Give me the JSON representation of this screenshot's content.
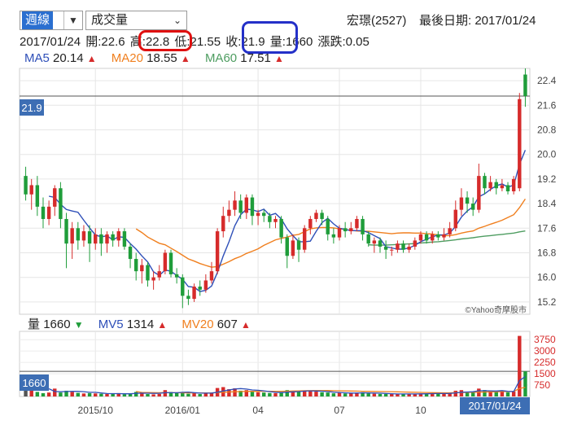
{
  "toolbar": {
    "period": "週線",
    "indicator": "成交量",
    "stock": "宏璟(2527)",
    "last_date_label": "最後日期: 2017/01/24"
  },
  "quote": {
    "date": "2017/01/24",
    "open": "開:22.6",
    "high": "高:22.8",
    "low": "低:21.55",
    "close": "收:21.9",
    "volume": "量:1660",
    "change": "漲跌:0.05"
  },
  "ma_legend": [
    {
      "name": "MA5",
      "value": "20.14",
      "color": "#2e4fb8"
    },
    {
      "name": "MA20",
      "value": "18.55",
      "color": "#f07f1e"
    },
    {
      "name": "MA60",
      "value": "17.51",
      "color": "#4e9d61"
    }
  ],
  "vol_legend": {
    "label": "量",
    "value": "1660",
    "mv": [
      {
        "name": "MV5",
        "value": "1314",
        "color": "#2e4fb8"
      },
      {
        "name": "MV20",
        "value": "607",
        "color": "#f07f1e"
      }
    ]
  },
  "price_badge": "21.9",
  "vol_badge": "1660",
  "date_badge": "2017/01/24",
  "watermark": "©Yahoo奇摩股市",
  "colors": {
    "up": "#d62b2b",
    "down": "#1f9d3a",
    "ma5": "#2e4fb8",
    "ma20": "#f07f1e",
    "ma60": "#4e9d61",
    "badge": "#3d6eb4"
  },
  "chart_data": {
    "type": "candlestick",
    "y_ticks": [
      15.2,
      16.0,
      16.8,
      17.6,
      18.4,
      19.2,
      20.0,
      20.8,
      21.6,
      22.4
    ],
    "ylim": [
      14.8,
      22.8
    ],
    "x_ticks": [
      {
        "label": "2015/10",
        "index": 12
      },
      {
        "label": "2016/01",
        "index": 27
      },
      {
        "label": "04",
        "index": 40
      },
      {
        "label": "07",
        "index": 54
      },
      {
        "label": "10",
        "index": 68
      }
    ],
    "candles": [
      [
        19.3,
        18.7,
        19.6,
        18.5
      ],
      [
        18.7,
        19.0,
        19.2,
        18.2
      ],
      [
        19.0,
        18.3,
        19.3,
        18.0
      ],
      [
        18.3,
        17.9,
        18.6,
        17.6
      ],
      [
        17.9,
        18.3,
        18.5,
        17.7
      ],
      [
        18.3,
        18.9,
        19.0,
        18.0
      ],
      [
        18.9,
        17.9,
        19.1,
        17.6
      ],
      [
        17.9,
        17.1,
        18.1,
        16.3
      ],
      [
        17.1,
        17.6,
        17.8,
        16.6
      ],
      [
        17.6,
        17.2,
        17.8,
        16.9
      ],
      [
        17.2,
        17.5,
        17.7,
        17.0
      ],
      [
        17.5,
        17.1,
        17.7,
        16.5
      ],
      [
        17.1,
        17.4,
        17.6,
        16.9
      ],
      [
        17.4,
        17.1,
        17.6,
        16.7
      ],
      [
        17.1,
        17.4,
        17.5,
        16.8
      ],
      [
        17.4,
        17.2,
        17.5,
        17.0
      ],
      [
        17.2,
        17.5,
        17.6,
        17.0
      ],
      [
        17.5,
        17.0,
        17.6,
        16.9
      ],
      [
        17.0,
        16.6,
        17.1,
        16.3
      ],
      [
        16.6,
        16.2,
        16.8,
        15.9
      ],
      [
        16.2,
        16.4,
        16.6,
        15.8
      ],
      [
        16.4,
        15.9,
        16.5,
        15.7
      ],
      [
        15.9,
        16.0,
        16.2,
        15.6
      ],
      [
        16.0,
        16.2,
        16.4,
        15.9
      ],
      [
        16.2,
        16.8,
        16.9,
        16.1
      ],
      [
        16.8,
        16.1,
        16.9,
        16.0
      ],
      [
        16.1,
        16.0,
        16.3,
        15.8
      ],
      [
        16.0,
        15.4,
        16.1,
        15.0
      ],
      [
        15.4,
        15.3,
        15.6,
        15.1
      ],
      [
        15.3,
        15.7,
        15.8,
        15.2
      ],
      [
        15.7,
        15.6,
        15.9,
        15.4
      ],
      [
        15.6,
        15.9,
        16.1,
        15.5
      ],
      [
        15.9,
        16.2,
        16.5,
        15.8
      ],
      [
        16.2,
        17.5,
        17.6,
        16.1
      ],
      [
        17.5,
        18.0,
        18.3,
        17.3
      ],
      [
        18.0,
        18.2,
        18.5,
        17.8
      ],
      [
        18.2,
        18.5,
        18.8,
        18.0
      ],
      [
        18.5,
        18.1,
        18.7,
        17.9
      ],
      [
        18.1,
        18.6,
        18.7,
        17.9
      ],
      [
        18.6,
        18.0,
        18.7,
        17.7
      ],
      [
        18.0,
        18.1,
        18.2,
        17.7
      ],
      [
        18.1,
        18.0,
        18.2,
        17.8
      ],
      [
        18.0,
        17.8,
        18.1,
        17.6
      ],
      [
        17.8,
        17.9,
        18.0,
        17.6
      ],
      [
        17.9,
        17.3,
        18.0,
        17.1
      ],
      [
        17.3,
        16.7,
        17.4,
        16.3
      ],
      [
        16.7,
        17.2,
        17.4,
        16.6
      ],
      [
        17.2,
        16.9,
        17.3,
        16.5
      ],
      [
        16.9,
        17.6,
        17.7,
        16.8
      ],
      [
        17.6,
        17.9,
        18.0,
        17.4
      ],
      [
        17.9,
        18.1,
        18.2,
        17.8
      ],
      [
        18.1,
        17.9,
        18.2,
        17.7
      ],
      [
        17.9,
        17.4,
        18.0,
        17.2
      ],
      [
        17.4,
        17.3,
        17.6,
        17.1
      ],
      [
        17.3,
        17.6,
        17.7,
        17.2
      ],
      [
        17.6,
        17.5,
        17.8,
        17.3
      ],
      [
        17.5,
        17.6,
        17.8,
        17.4
      ],
      [
        17.6,
        17.9,
        18.0,
        17.5
      ],
      [
        17.9,
        17.4,
        18.0,
        17.2
      ],
      [
        17.4,
        17.1,
        17.5,
        17.0
      ],
      [
        17.1,
        17.2,
        17.3,
        16.8
      ],
      [
        17.2,
        17.0,
        17.3,
        16.8
      ],
      [
        17.0,
        16.9,
        17.2,
        16.6
      ],
      [
        16.9,
        16.9,
        17.0,
        16.7
      ],
      [
        16.9,
        17.1,
        17.2,
        16.8
      ],
      [
        17.1,
        16.9,
        17.2,
        16.8
      ],
      [
        16.9,
        17.0,
        17.1,
        16.8
      ],
      [
        17.0,
        17.2,
        17.3,
        16.9
      ],
      [
        17.2,
        17.4,
        17.5,
        17.1
      ],
      [
        17.4,
        17.2,
        17.5,
        17.1
      ],
      [
        17.2,
        17.4,
        17.5,
        17.1
      ],
      [
        17.4,
        17.3,
        17.5,
        17.2
      ],
      [
        17.3,
        17.4,
        17.6,
        17.2
      ],
      [
        17.4,
        17.6,
        17.8,
        17.3
      ],
      [
        17.6,
        18.2,
        18.5,
        17.5
      ],
      [
        18.2,
        18.6,
        18.9,
        18.0
      ],
      [
        18.6,
        18.4,
        18.8,
        18.1
      ],
      [
        18.4,
        18.2,
        18.6,
        18.0
      ],
      [
        18.2,
        19.3,
        19.7,
        18.1
      ],
      [
        19.3,
        18.9,
        19.4,
        18.7
      ],
      [
        18.9,
        19.1,
        19.3,
        18.8
      ],
      [
        19.1,
        18.9,
        19.2,
        18.7
      ],
      [
        18.9,
        19.0,
        19.2,
        18.8
      ],
      [
        19.0,
        18.8,
        19.1,
        18.7
      ],
      [
        18.8,
        19.2,
        19.3,
        18.7
      ],
      [
        18.9,
        21.8,
        22.0,
        18.8
      ],
      [
        22.6,
        21.9,
        22.8,
        21.55
      ]
    ],
    "ma5": [
      null,
      null,
      null,
      null,
      18.64,
      18.6,
      18.38,
      18.21,
      18.16,
      18.12,
      17.86,
      17.61,
      17.38,
      17.32,
      17.35,
      17.22,
      17.32,
      17.3,
      17.1,
      16.92,
      16.7,
      16.5,
      16.18,
      16.06,
      16.24,
      16.2,
      16.06,
      15.94,
      15.7,
      15.68,
      15.54,
      15.58,
      15.72,
      16.16,
      16.7,
      17.16,
      17.68,
      18.04,
      18.22,
      18.2,
      18.14,
      18.22,
      18.02,
      18.08,
      17.9,
      17.58,
      17.36,
      17.16,
      17.16,
      17.18,
      17.5,
      17.78,
      17.92,
      17.74,
      17.6,
      17.56,
      17.52,
      17.52,
      17.52,
      17.46,
      17.36,
      17.26,
      17.0,
      16.96,
      16.92,
      16.92,
      16.96,
      17.04,
      17.16,
      17.24,
      17.32,
      17.38,
      17.38,
      17.44,
      17.66,
      17.96,
      18.16,
      18.3,
      18.62,
      18.72,
      18.86,
      18.98,
      19.04,
      18.94,
      19.0,
      19.68,
      20.14
    ],
    "ma20": [
      null,
      null,
      null,
      null,
      null,
      null,
      null,
      null,
      null,
      null,
      null,
      null,
      null,
      null,
      null,
      null,
      null,
      null,
      null,
      17.58,
      17.46,
      17.31,
      17.21,
      17.11,
      17.06,
      16.95,
      16.84,
      16.72,
      16.6,
      16.53,
      16.45,
      16.39,
      16.33,
      16.35,
      16.43,
      16.51,
      16.61,
      16.68,
      16.78,
      16.85,
      16.93,
      17.04,
      17.13,
      17.22,
      17.27,
      17.31,
      17.37,
      17.4,
      17.49,
      17.58,
      17.61,
      17.62,
      17.62,
      17.61,
      17.58,
      17.56,
      17.53,
      17.51,
      17.5,
      17.5,
      17.48,
      17.46,
      17.44,
      17.42,
      17.44,
      17.45,
      17.45,
      17.44,
      17.44,
      17.42,
      17.41,
      17.38,
      17.36,
      17.36,
      17.39,
      17.44,
      17.48,
      17.51,
      17.6,
      17.66,
      17.73,
      17.79,
      17.86,
      17.95,
      18.04,
      18.27,
      18.55
    ],
    "ma60": [
      null,
      null,
      null,
      null,
      null,
      null,
      null,
      null,
      null,
      null,
      null,
      null,
      null,
      null,
      null,
      null,
      null,
      null,
      null,
      null,
      null,
      null,
      null,
      null,
      null,
      null,
      null,
      null,
      null,
      null,
      null,
      null,
      null,
      null,
      null,
      null,
      null,
      null,
      null,
      null,
      null,
      null,
      null,
      null,
      null,
      null,
      null,
      null,
      null,
      null,
      null,
      null,
      null,
      null,
      null,
      null,
      null,
      null,
      null,
      17.06,
      17.05,
      17.05,
      17.05,
      17.06,
      17.07,
      17.08,
      17.09,
      17.1,
      17.12,
      17.13,
      17.15,
      17.16,
      17.18,
      17.2,
      17.22,
      17.25,
      17.27,
      17.29,
      17.32,
      17.34,
      17.36,
      17.38,
      17.4,
      17.42,
      17.44,
      17.48,
      17.51
    ],
    "vol_ticks": [
      750,
      1500,
      2250,
      3000,
      3750
    ],
    "vol_ylim": [
      0,
      4300
    ],
    "volume": [
      1400,
      380,
      300,
      220,
      260,
      520,
      260,
      380,
      300,
      240,
      200,
      220,
      200,
      180,
      160,
      170,
      220,
      150,
      180,
      300,
      260,
      160,
      140,
      170,
      420,
      300,
      250,
      300,
      180,
      230,
      160,
      200,
      260,
      560,
      620,
      480,
      540,
      380,
      420,
      310,
      280,
      260,
      230,
      220,
      300,
      420,
      360,
      300,
      400,
      380,
      320,
      280,
      260,
      210,
      250,
      200,
      220,
      260,
      280,
      200,
      180,
      170,
      160,
      160,
      170,
      150,
      160,
      180,
      200,
      190,
      210,
      190,
      180,
      210,
      380,
      420,
      300,
      260,
      520,
      420,
      360,
      300,
      330,
      280,
      320,
      4000,
      1660
    ],
    "mv5": [
      null,
      null,
      null,
      null,
      512,
      328,
      312,
      328,
      344,
      340,
      316,
      272,
      272,
      232,
      196,
      190,
      190,
      180,
      176,
      204,
      222,
      216,
      206,
      210,
      254,
      246,
      248,
      274,
      290,
      252,
      224,
      222,
      226,
      282,
      360,
      428,
      492,
      520,
      488,
      430,
      406,
      370,
      320,
      282,
      258,
      286,
      306,
      320,
      356,
      372,
      360,
      352,
      324,
      284,
      264,
      244,
      228,
      228,
      242,
      232,
      228,
      218,
      200,
      182,
      168,
      164,
      164,
      166,
      174,
      180,
      188,
      194,
      192,
      198,
      236,
      280,
      298,
      314,
      376,
      384,
      372,
      360,
      386,
      342,
      326,
      1048,
      1314
    ],
    "mv20": [
      null,
      null,
      null,
      null,
      null,
      null,
      null,
      null,
      null,
      null,
      null,
      null,
      null,
      null,
      null,
      null,
      null,
      null,
      null,
      326,
      269,
      258,
      250,
      248,
      256,
      245,
      245,
      241,
      235,
      235,
      235,
      234,
      237,
      256,
      279,
      296,
      313,
      324,
      336,
      336,
      337,
      342,
      346,
      346,
      345,
      351,
      362,
      369,
      381,
      388,
      390,
      389,
      390,
      381,
      378,
      368,
      361,
      353,
      346,
      340,
      335,
      329,
      324,
      318,
      308,
      295,
      285,
      279,
      270,
      261,
      252,
      246,
      242,
      241,
      250,
      261,
      267,
      272,
      286,
      297,
      307,
      314,
      322,
      328,
      335,
      525,
      607
    ]
  }
}
